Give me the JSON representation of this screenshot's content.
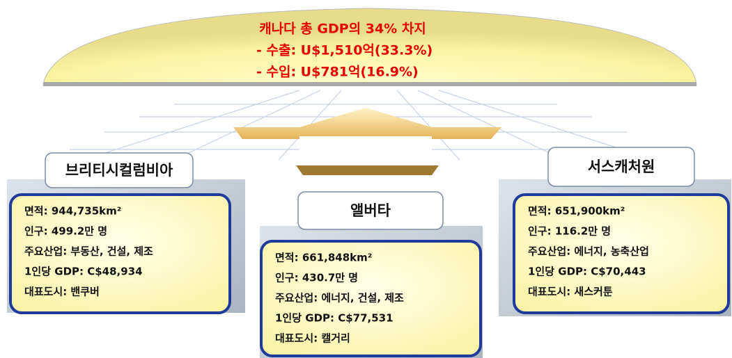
{
  "header": {
    "lines": [
      "캐나다 총 GDP의 34% 차지",
      "- 수출: U$1,510억(33.3%)",
      "- 수입: U$781억(16.9%)"
    ]
  },
  "provinces": [
    {
      "name": "브리티시컬럼비아",
      "details": [
        "면적: 944,735km²",
        "인구: 499.2만 명",
        "주요산업: 부동산, 건설, 제조",
        "1인당 GDP: C$48,934",
        "대표도시: 밴쿠버"
      ]
    },
    {
      "name": "앨버타",
      "details": [
        "면적: 661,848km²",
        "인구: 430.7만 명",
        "주요산업: 에너지, 건설, 제조",
        "1인당 GDP: C$77,531",
        "대표도시: 캘거리"
      ]
    },
    {
      "name": "서스캐처원",
      "details": [
        "면적: 651,900km²",
        "인구: 116.2만 명",
        "주요산업: 에너지, 농축산업",
        "1인당 GDP: C$70,443",
        "대표도시: 새스커툰"
      ]
    }
  ]
}
